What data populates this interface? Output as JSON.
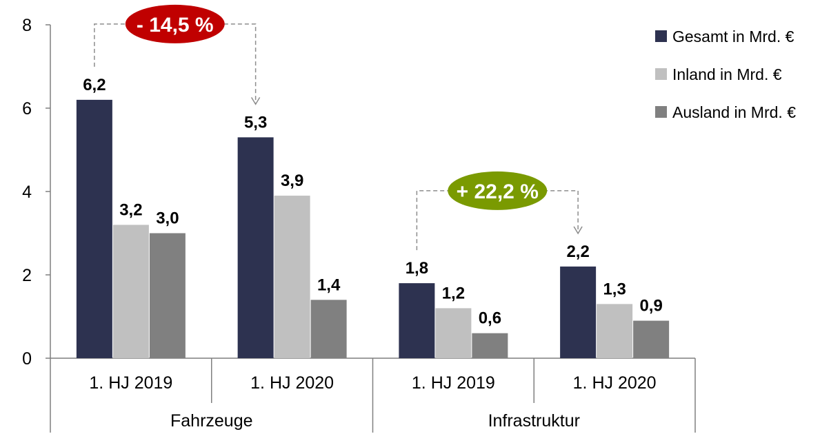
{
  "chart_data": {
    "type": "bar",
    "groups": [
      "Fahrzeuge",
      "Infrastruktur"
    ],
    "categories": [
      "1. HJ 2019",
      "1. HJ 2020",
      "1. HJ 2019",
      "1. HJ 2020"
    ],
    "category_groups": [
      0,
      0,
      1,
      1
    ],
    "series": [
      {
        "name": "Gesamt in Mrd. €",
        "color": "#2d3250",
        "values": [
          6.2,
          5.3,
          1.8,
          2.2
        ],
        "labels": [
          "6,2",
          "5,3",
          "1,8",
          "2,2"
        ]
      },
      {
        "name": "Inland in Mrd. €",
        "color": "#c0c0c0",
        "values": [
          3.2,
          3.9,
          1.2,
          1.3
        ],
        "labels": [
          "3,2",
          "3,9",
          "1,2",
          "1,3"
        ]
      },
      {
        "name": "Ausland in Mrd. €",
        "color": "#808080",
        "values": [
          3.0,
          1.4,
          0.6,
          0.9
        ],
        "labels": [
          "3,0",
          "1,4",
          "0,6",
          "0,9"
        ]
      }
    ],
    "ylim": [
      0,
      8
    ],
    "yticks": [
      0,
      2,
      4,
      6,
      8
    ],
    "ytick_labels": [
      "0",
      "2",
      "4",
      "6",
      "8"
    ],
    "legend_position": "top-right",
    "grid": false,
    "annotations": [
      {
        "text": "- 14,5 %",
        "color": "#c00000",
        "from_category": 0,
        "to_category": 1
      },
      {
        "text": "+ 22,2 %",
        "color": "#7a9a01",
        "from_category": 2,
        "to_category": 3
      }
    ]
  }
}
